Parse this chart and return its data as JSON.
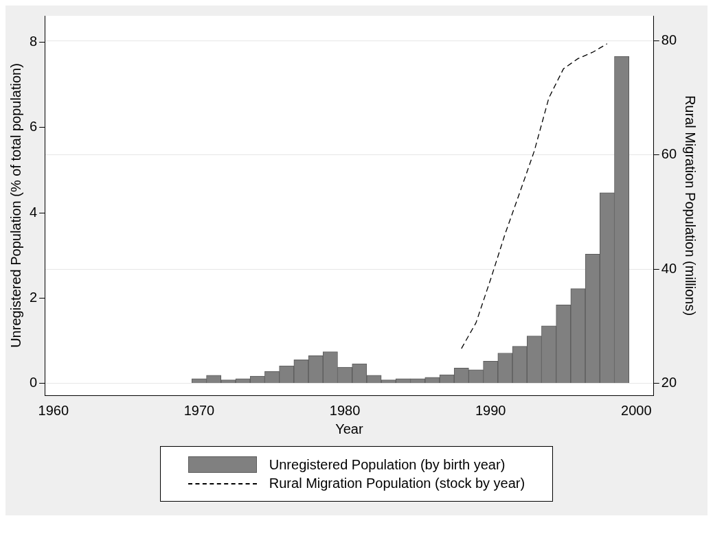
{
  "chart_data": {
    "type": "bar",
    "xlabel": "Year",
    "ylabel": "Unregistered Population (% of total population)",
    "y2label": "Rural Migration Population (millions)",
    "x": [
      1970,
      1971,
      1972,
      1973,
      1974,
      1975,
      1976,
      1977,
      1978,
      1979,
      1980,
      1981,
      1982,
      1983,
      1984,
      1985,
      1986,
      1987,
      1988,
      1989,
      1990,
      1991,
      1992,
      1993,
      1994,
      1995,
      1996,
      1997,
      1998,
      1999
    ],
    "series": [
      {
        "name": "Unregistered Population (by birth year)",
        "color": "#808080",
        "values": [
          0.11,
          0.19,
          0.08,
          0.11,
          0.17,
          0.28,
          0.41,
          0.55,
          0.65,
          0.74,
          0.38,
          0.46,
          0.19,
          0.08,
          0.11,
          0.11,
          0.14,
          0.2,
          0.36,
          0.32,
          0.52,
          0.71,
          0.87,
          1.11,
          1.35,
          1.84,
          2.22,
          3.03,
          4.47,
          7.67
        ]
      },
      {
        "name": "Rural Migration Population (stock by year)",
        "type": "line",
        "axis": "y2",
        "color": "#000000",
        "line_style": "dashed",
        "marker": "none",
        "x": [
          1988,
          1989,
          1990,
          1991,
          1992,
          1993,
          1994,
          1995,
          1996,
          1997,
          1998
        ],
        "values": [
          26.1,
          30.6,
          38.2,
          46.2,
          53.4,
          60.7,
          70,
          75.1,
          76.9,
          78,
          79.5
        ]
      }
    ],
    "xlim": [
      1959.4,
      2001.2
    ],
    "xticks": [
      1960,
      1970,
      1980,
      1990,
      2000
    ],
    "ylim": [
      -0.28,
      8.62
    ],
    "yticks": [
      0,
      2,
      4,
      6,
      8
    ],
    "y2lim": [
      17.9,
      84.4
    ],
    "y2ticks": [
      20,
      40,
      60,
      80
    ],
    "grid": "y",
    "legend": "bottom"
  }
}
